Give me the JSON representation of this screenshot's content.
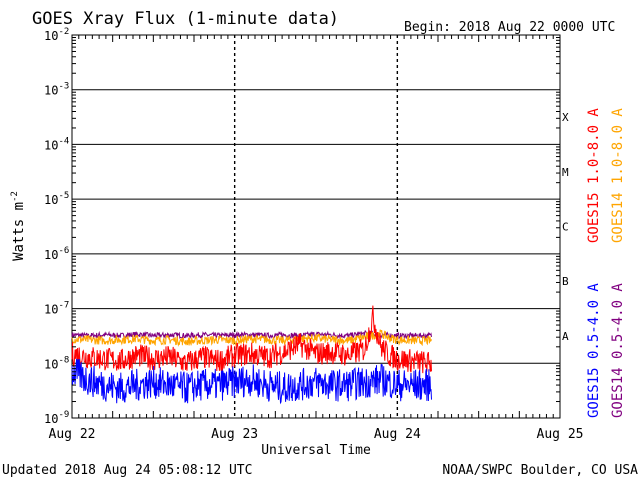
{
  "chart_data": {
    "type": "line",
    "title": "GOES Xray Flux (1-minute data)",
    "begin_label": "Begin:  2018 Aug 22 0000 UTC",
    "xlabel": "Universal Time",
    "ylabel_base": "Watts m",
    "ylabel_exp": "-2",
    "y_scale": "log",
    "ylim": [
      1e-09,
      0.01
    ],
    "y_ticks": [
      {
        "value": 0.01,
        "base": "10",
        "exp": "-2"
      },
      {
        "value": 0.001,
        "base": "10",
        "exp": "-3"
      },
      {
        "value": 0.0001,
        "base": "10",
        "exp": "-4"
      },
      {
        "value": 1e-05,
        "base": "10",
        "exp": "-5"
      },
      {
        "value": 1e-06,
        "base": "10",
        "exp": "-6"
      },
      {
        "value": 1e-07,
        "base": "10",
        "exp": "-7"
      },
      {
        "value": 1e-08,
        "base": "10",
        "exp": "-8"
      },
      {
        "value": 1e-09,
        "base": "10",
        "exp": "-9"
      }
    ],
    "x_unit": "days since 2018 Aug 22 0000 UTC",
    "xlim": [
      0,
      3
    ],
    "x_ticks": [
      {
        "value": 0,
        "label": "Aug 22"
      },
      {
        "value": 1,
        "label": "Aug 23"
      },
      {
        "value": 2,
        "label": "Aug 24"
      },
      {
        "value": 3,
        "label": "Aug 25"
      }
    ],
    "flare_classes": [
      {
        "label": "X",
        "from": 0.0001,
        "to": 0.001
      },
      {
        "label": "M",
        "from": 1e-05,
        "to": 0.0001
      },
      {
        "label": "C",
        "from": 1e-06,
        "to": 1e-05
      },
      {
        "label": "B",
        "from": 1e-07,
        "to": 1e-06
      },
      {
        "label": "A",
        "from": 1e-08,
        "to": 1e-07
      }
    ],
    "legend_right": [
      {
        "label": "GOES15 1.0-8.0 A",
        "color": "#ff0000"
      },
      {
        "label": "GOES14 1.0-8.0 A",
        "color": "#ffa500"
      }
    ],
    "legend_right2": [
      {
        "label": "GOES15 0.5-4.0 A",
        "color": "#0000ff"
      },
      {
        "label": "GOES14 0.5-4.0 A",
        "color": "#800080"
      }
    ],
    "series": [
      {
        "name": "GOES14 0.5-4.0 A",
        "color": "#800080",
        "x": [
          0,
          0.1,
          0.2,
          0.3,
          0.4,
          0.5,
          0.6,
          0.7,
          0.8,
          0.9,
          1.0,
          1.1,
          1.2,
          1.3,
          1.4,
          1.5,
          1.6,
          1.7,
          1.8,
          1.9,
          2.0,
          2.1,
          2.21
        ],
        "y": [
          3.3e-08,
          3.2e-08,
          3.3e-08,
          3.2e-08,
          3.4e-08,
          3.2e-08,
          3.3e-08,
          3.2e-08,
          3.3e-08,
          3.2e-08,
          3.3e-08,
          3.3e-08,
          3.2e-08,
          3.3e-08,
          3.2e-08,
          3.4e-08,
          3.3e-08,
          3.2e-08,
          3.5e-08,
          3.3e-08,
          3.2e-08,
          3.2e-08,
          3.2e-08
        ]
      },
      {
        "name": "GOES14 1.0-8.0 A",
        "color": "#ffa500",
        "x": [
          0,
          0.1,
          0.2,
          0.3,
          0.4,
          0.5,
          0.6,
          0.7,
          0.8,
          0.9,
          1.0,
          1.1,
          1.2,
          1.3,
          1.4,
          1.5,
          1.6,
          1.7,
          1.8,
          1.9,
          1.95,
          2.0,
          2.1,
          2.21
        ],
        "y": [
          2.8e-08,
          2.7e-08,
          2.6e-08,
          2.7e-08,
          2.8e-08,
          2.6e-08,
          2.7e-08,
          2.5e-08,
          2.6e-08,
          2.7e-08,
          2.6e-08,
          2.8e-08,
          2.7e-08,
          2.6e-08,
          2.8e-08,
          2.9e-08,
          2.7e-08,
          2.6e-08,
          3e-08,
          3.5e-08,
          2.9e-08,
          2.7e-08,
          2.6e-08,
          2.6e-08
        ]
      },
      {
        "name": "GOES15 1.0-8.0 A",
        "color": "#ff0000",
        "x": [
          0,
          0.1,
          0.2,
          0.3,
          0.4,
          0.5,
          0.6,
          0.7,
          0.8,
          0.9,
          1.0,
          1.1,
          1.2,
          1.3,
          1.4,
          1.5,
          1.6,
          1.7,
          1.8,
          1.85,
          1.9,
          1.95,
          2.0,
          2.1,
          2.21
        ],
        "y": [
          1.5e-08,
          1.3e-08,
          1.2e-08,
          1.1e-08,
          1.4e-08,
          1.2e-08,
          1.3e-08,
          1e-08,
          1.3e-08,
          1.1e-08,
          1.4e-08,
          1.5e-08,
          1.3e-08,
          1.6e-08,
          2.2e-08,
          1.5e-08,
          1.6e-08,
          1.4e-08,
          1.8e-08,
          7e-08,
          2e-08,
          1.4e-08,
          1.2e-08,
          1.1e-08,
          1e-08
        ]
      },
      {
        "name": "GOES15 0.5-4.0 A",
        "color": "#0000ff",
        "x": [
          0,
          0.1,
          0.2,
          0.3,
          0.4,
          0.5,
          0.6,
          0.7,
          0.8,
          0.9,
          1.0,
          1.1,
          1.2,
          1.3,
          1.4,
          1.5,
          1.6,
          1.7,
          1.8,
          1.9,
          2.0,
          2.1,
          2.21
        ],
        "y": [
          7e-09,
          5e-09,
          4e-09,
          3.5e-09,
          4e-09,
          4.5e-09,
          4e-09,
          3.5e-09,
          4e-09,
          4e-09,
          4.5e-09,
          5e-09,
          4e-09,
          3.5e-09,
          4e-09,
          4.5e-09,
          4e-09,
          4e-09,
          4.5e-09,
          5e-09,
          4e-09,
          4e-09,
          4e-09
        ]
      }
    ]
  },
  "footer": {
    "updated": "Updated 2018 Aug 24 05:08:12 UTC",
    "credit": "NOAA/SWPC Boulder, CO USA"
  },
  "colors": {
    "frame": "#000000",
    "background": "#ffffff"
  }
}
